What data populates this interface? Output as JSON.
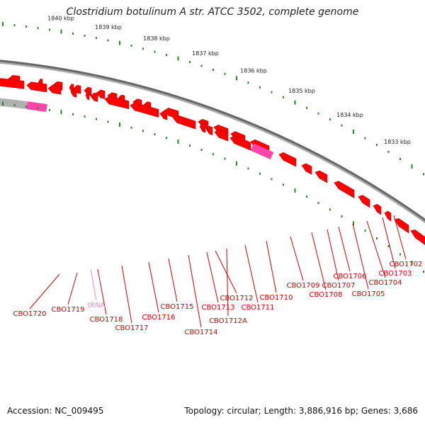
{
  "title": "Clostridium botulinum A str. ATCC 3502, complete genome",
  "footer": {
    "accession": "Accession: NC_009495",
    "summary": "Topology: circular; Length: 3,886,916 bp; Genes: 3,686"
  },
  "scale_labels": [
    "1840 kbp",
    "1839 kbp",
    "1838 kbp",
    "1837 kbp",
    "1836 kbp",
    "1835 kbp",
    "1834 kbp",
    "1833 kbp"
  ],
  "colors": {
    "gene": "#ff0000",
    "gene_shade": "#b00000",
    "rna": "#ff44aa",
    "rna_label": "#ee88cc",
    "backbone": "#888888",
    "ticks": "#228b22",
    "label": "#d40000"
  },
  "gene_labels": [
    "CBO1720",
    "CBO1719",
    "tRNA",
    "CBO1718",
    "CBO1717",
    "CBO1716",
    "CBO1715",
    "CBO1714",
    "CBO1713",
    "CBO1712",
    "CBO1712A",
    "CBO1711",
    "CBO1710",
    "CBO1709",
    "CBO1708",
    "CBO1707",
    "CBO1706",
    "CBO1705",
    "CBO1704",
    "CBO1703",
    "CBO1702"
  ]
}
